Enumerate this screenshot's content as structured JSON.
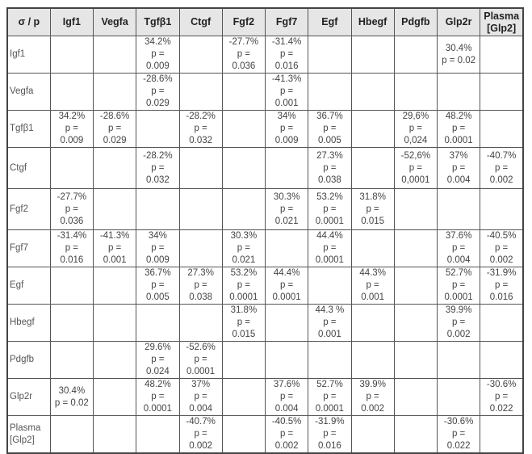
{
  "table": {
    "corner": "σ / p",
    "headers": [
      "Igf1",
      "Vegfa",
      "Tgfβ1",
      "Ctgf",
      "Fgf2",
      "Fgf7",
      "Egf",
      "Hbegf",
      "Pdgfb",
      "Glp2r",
      "Plasma\n[Glp2]"
    ],
    "rows": [
      {
        "label": "Igf1",
        "cells": [
          "",
          "",
          "34.2%\np = 0.009",
          "",
          "-27.7%\np = 0.036",
          "-31.4%\np = 0.016",
          "",
          "",
          "",
          "30.4%\np = 0.02",
          ""
        ]
      },
      {
        "label": "Vegfa",
        "cells": [
          "",
          "",
          "-28.6%\np = 0.029",
          "",
          "",
          "-41.3%\np = 0.001",
          "",
          "",
          "",
          "",
          ""
        ]
      },
      {
        "label": "Tgfβ1",
        "cells": [
          "34.2%\np = 0.009",
          "-28.6%\np = 0.029",
          "",
          "-28.2%\np = 0.032",
          "",
          "34%\np = 0.009",
          "36.7%\np = 0.005",
          "",
          "29,6%\np = 0,024",
          "48.2%\np = 0.0001",
          ""
        ]
      },
      {
        "label": "Ctgf",
        "cells": [
          "",
          "",
          "-28.2%\np = 0.032",
          "",
          "",
          "",
          "27.3%\np = 0.038",
          "",
          "-52,6%\np =\n0,0001",
          "37%\np = 0.004",
          "-40.7%\np = 0.002"
        ]
      },
      {
        "label": "Fgf2",
        "cells": [
          "-27.7%\np = 0.036",
          "",
          "",
          "",
          "",
          "30.3%\np = 0.021",
          "53.2%\np =\n0.0001",
          "31.8%\np = 0.015",
          "",
          "",
          ""
        ]
      },
      {
        "label": "Fgf7",
        "cells": [
          "-31.4%\np = 0.016",
          "-41.3%\np = 0.001",
          "34%\np = 0.009",
          "",
          "30.3%\np = 0.021",
          "",
          "44.4%\np = 0.0001",
          "",
          "",
          "37.6%\np = 0.004",
          "-40.5%\np = 0.002"
        ]
      },
      {
        "label": "Egf",
        "cells": [
          "",
          "",
          "36.7%\np = 0.005",
          "27.3%\np = 0.038",
          "53.2%\np = 0.0001",
          "44.4%\np = 0.0001",
          "",
          "44.3%\np = 0.001",
          "",
          "52.7%\np = 0.0001",
          "-31.9%\np = 0.016"
        ]
      },
      {
        "label": "Hbegf",
        "cells": [
          "",
          "",
          "",
          "",
          "31.8%\np = 0.015",
          "",
          "44.3 %\np = 0.001",
          "",
          "",
          "39.9%\np = 0.002",
          ""
        ]
      },
      {
        "label": "Pdgfb",
        "cells": [
          "",
          "",
          "29.6%\np = 0.024",
          "-52.6%\np = 0.0001",
          "",
          "",
          "",
          "",
          "",
          "",
          ""
        ]
      },
      {
        "label": "Glp2r",
        "cells": [
          "30.4%\np = 0.02",
          "",
          "48.2%\np = 0.0001",
          "37%\np = 0.004",
          "",
          "37.6%\np = 0.004",
          "52.7%\np = 0.0001",
          "39.9%\np = 0.002",
          "",
          "",
          "-30.6%\np = 0.022"
        ]
      },
      {
        "label": "Plasma\n[Glp2]",
        "cells": [
          "",
          "",
          "",
          "-40.7%\np = 0.002",
          "",
          "-40.5%\np = 0.002",
          "-31.9%\np = 0.016",
          "",
          "",
          "-30.6%\np = 0.022",
          ""
        ]
      }
    ]
  }
}
